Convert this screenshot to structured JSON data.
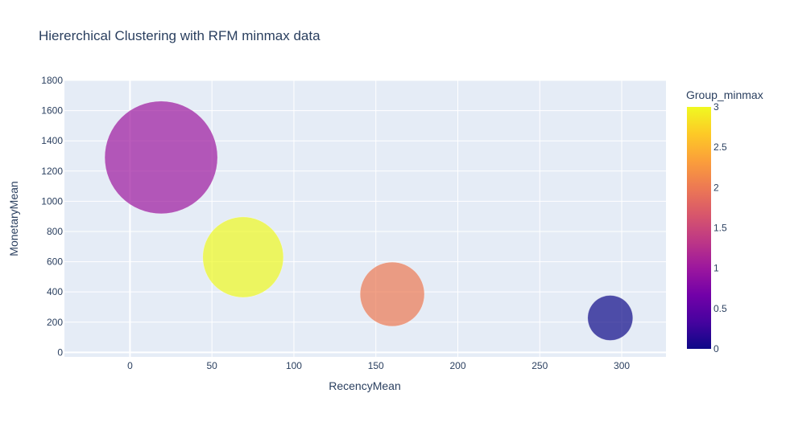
{
  "chart_data": {
    "type": "scatter",
    "title": "Hiererchical Clustering with RFM minmax data",
    "xlabel": "RecencyMean",
    "ylabel": "MonetaryMean",
    "xlim": [
      -40,
      327
    ],
    "ylim": [
      -30,
      1800
    ],
    "xticks": [
      0,
      50,
      100,
      150,
      200,
      250,
      300
    ],
    "yticks": [
      0,
      200,
      400,
      600,
      800,
      1000,
      1200,
      1400,
      1600,
      1800
    ],
    "grid": true,
    "colorbar": {
      "title": "Group_minmax",
      "range": [
        0,
        3
      ],
      "ticks": [
        0,
        0.5,
        1,
        1.5,
        2,
        2.5,
        3
      ],
      "colorscale": [
        "#0d0887",
        "#46039f",
        "#7201a8",
        "#9c179e",
        "#bd3786",
        "#d8576b",
        "#ed7953",
        "#fb9f3a",
        "#fdca26",
        "#f0f921"
      ]
    },
    "series": [
      {
        "points": [
          {
            "x": 19,
            "y": 1290,
            "group": 1,
            "size": 1.0
          },
          {
            "x": 69,
            "y": 630,
            "group": 3,
            "size": 0.715
          },
          {
            "x": 160,
            "y": 385,
            "group": 2,
            "size": 0.57
          },
          {
            "x": 293,
            "y": 228,
            "group": 0,
            "size": 0.4
          }
        ]
      }
    ],
    "background_color": "#e5ecf6"
  }
}
